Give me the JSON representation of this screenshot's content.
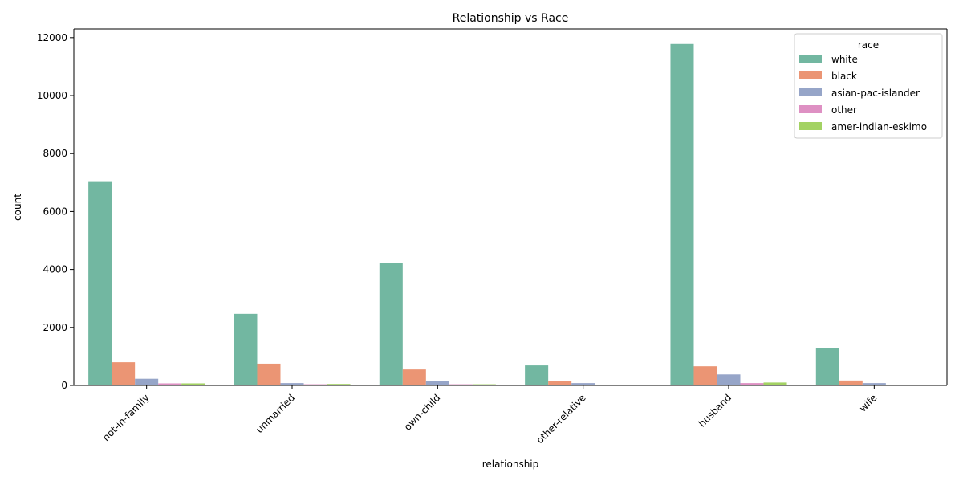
{
  "chart_data": {
    "type": "bar",
    "title": "Relationship vs Race",
    "xlabel": "relationship",
    "ylabel": "count",
    "ylim": [
      0,
      12300
    ],
    "yticks": [
      0,
      2000,
      4000,
      6000,
      8000,
      10000,
      12000
    ],
    "categories": [
      "not-in-family",
      "unmarried",
      "own-child",
      "other-relative",
      "husband",
      "wife"
    ],
    "legend": {
      "title": "race",
      "position": "top-right"
    },
    "grid": false,
    "series": [
      {
        "name": "white",
        "color": "#72b7a1",
        "values": [
          7020,
          2470,
          4220,
          690,
          11780,
          1300
        ]
      },
      {
        "name": "black",
        "color": "#eb9574",
        "values": [
          800,
          750,
          550,
          160,
          660,
          170
        ]
      },
      {
        "name": "asian-pac-islander",
        "color": "#96a5c8",
        "values": [
          230,
          80,
          160,
          80,
          380,
          80
        ]
      },
      {
        "name": "other",
        "color": "#de90c3",
        "values": [
          70,
          40,
          40,
          20,
          80,
          20
        ]
      },
      {
        "name": "amer-indian-eskimo",
        "color": "#a3d263",
        "values": [
          70,
          50,
          40,
          20,
          100,
          20
        ]
      }
    ]
  }
}
